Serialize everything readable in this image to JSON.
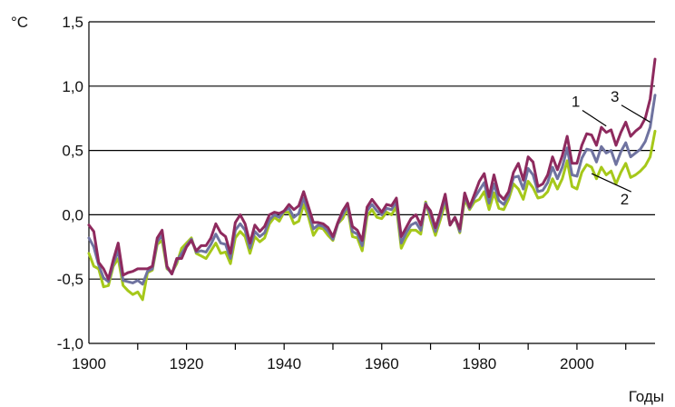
{
  "chart_data": {
    "type": "line",
    "ylabel": "°C",
    "xlabel": "Годы",
    "xlim": [
      1900,
      2016
    ],
    "ylim": [
      -1.0,
      1.5
    ],
    "x_ticks": [
      "1900",
      "1920",
      "1940",
      "1960",
      "1980",
      "2000"
    ],
    "y_ticks": [
      "1,5",
      "1,0",
      "0,5",
      "0,0",
      "-0,5",
      "-1,0"
    ],
    "grid": "horizontal",
    "x": [
      1900,
      1901,
      1902,
      1903,
      1904,
      1905,
      1906,
      1907,
      1908,
      1909,
      1910,
      1911,
      1912,
      1913,
      1914,
      1915,
      1916,
      1917,
      1918,
      1919,
      1920,
      1921,
      1922,
      1923,
      1924,
      1925,
      1926,
      1927,
      1928,
      1929,
      1930,
      1931,
      1932,
      1933,
      1934,
      1935,
      1936,
      1937,
      1938,
      1939,
      1940,
      1941,
      1942,
      1943,
      1944,
      1945,
      1946,
      1947,
      1948,
      1949,
      1950,
      1951,
      1952,
      1953,
      1954,
      1955,
      1956,
      1957,
      1958,
      1959,
      1960,
      1961,
      1962,
      1963,
      1964,
      1965,
      1966,
      1967,
      1968,
      1969,
      1970,
      1971,
      1972,
      1973,
      1974,
      1975,
      1976,
      1977,
      1978,
      1979,
      1980,
      1981,
      1982,
      1983,
      1984,
      1985,
      1986,
      1987,
      1988,
      1989,
      1990,
      1991,
      1992,
      1993,
      1994,
      1995,
      1996,
      1997,
      1998,
      1999,
      2000,
      2001,
      2002,
      2003,
      2004,
      2005,
      2006,
      2007,
      2008,
      2009,
      2010,
      2011,
      2012,
      2013,
      2014,
      2015,
      2016
    ],
    "series": [
      {
        "name": "1",
        "color": "#8e2a5e",
        "values": [
          -0.08,
          -0.13,
          -0.37,
          -0.42,
          -0.5,
          -0.35,
          -0.22,
          -0.47,
          -0.45,
          -0.44,
          -0.42,
          -0.42,
          -0.42,
          -0.4,
          -0.18,
          -0.12,
          -0.4,
          -0.46,
          -0.34,
          -0.34,
          -0.25,
          -0.2,
          -0.28,
          -0.24,
          -0.24,
          -0.18,
          -0.07,
          -0.14,
          -0.17,
          -0.3,
          -0.06,
          0.0,
          -0.07,
          -0.22,
          -0.08,
          -0.13,
          -0.09,
          0.0,
          0.02,
          0.01,
          0.03,
          0.08,
          0.04,
          0.07,
          0.18,
          0.06,
          -0.06,
          -0.06,
          -0.07,
          -0.1,
          -0.17,
          -0.06,
          0.03,
          0.09,
          -0.09,
          -0.12,
          -0.2,
          0.06,
          0.12,
          0.07,
          0.02,
          0.08,
          0.07,
          0.13,
          -0.17,
          -0.1,
          -0.03,
          0.0,
          -0.08,
          0.08,
          0.03,
          -0.1,
          0.02,
          0.16,
          -0.08,
          -0.02,
          -0.11,
          0.17,
          0.06,
          0.16,
          0.26,
          0.32,
          0.14,
          0.31,
          0.16,
          0.12,
          0.18,
          0.33,
          0.4,
          0.27,
          0.45,
          0.41,
          0.22,
          0.24,
          0.31,
          0.45,
          0.35,
          0.46,
          0.61,
          0.4,
          0.4,
          0.54,
          0.63,
          0.62,
          0.54,
          0.68,
          0.64,
          0.66,
          0.54,
          0.64,
          0.72,
          0.61,
          0.65,
          0.68,
          0.75,
          0.9,
          1.21
        ]
      },
      {
        "name": "2",
        "color": "#a6c81a",
        "values": [
          -0.3,
          -0.4,
          -0.42,
          -0.56,
          -0.55,
          -0.4,
          -0.34,
          -0.55,
          -0.59,
          -0.62,
          -0.6,
          -0.66,
          -0.45,
          -0.43,
          -0.23,
          -0.2,
          -0.42,
          -0.45,
          -0.38,
          -0.26,
          -0.22,
          -0.18,
          -0.3,
          -0.32,
          -0.34,
          -0.28,
          -0.22,
          -0.3,
          -0.29,
          -0.38,
          -0.18,
          -0.13,
          -0.17,
          -0.3,
          -0.17,
          -0.21,
          -0.18,
          -0.07,
          -0.02,
          -0.05,
          0.02,
          0.02,
          -0.07,
          -0.05,
          0.08,
          -0.02,
          -0.16,
          -0.1,
          -0.11,
          -0.16,
          -0.2,
          -0.07,
          -0.03,
          0.05,
          -0.17,
          -0.18,
          -0.28,
          -0.01,
          0.04,
          -0.02,
          -0.03,
          0.02,
          0.0,
          0.06,
          -0.26,
          -0.18,
          -0.12,
          -0.12,
          -0.15,
          0.1,
          -0.04,
          -0.16,
          -0.04,
          0.09,
          -0.08,
          -0.02,
          -0.14,
          0.12,
          0.04,
          0.1,
          0.12,
          0.18,
          0.04,
          0.17,
          0.05,
          0.04,
          0.12,
          0.24,
          0.2,
          0.12,
          0.26,
          0.21,
          0.13,
          0.14,
          0.18,
          0.28,
          0.2,
          0.28,
          0.42,
          0.22,
          0.2,
          0.33,
          0.39,
          0.37,
          0.28,
          0.37,
          0.31,
          0.34,
          0.24,
          0.33,
          0.4,
          0.29,
          0.31,
          0.34,
          0.38,
          0.45,
          0.65
        ]
      },
      {
        "name": "3",
        "color": "#6f73a0",
        "values": [
          -0.18,
          -0.25,
          -0.39,
          -0.49,
          -0.52,
          -0.38,
          -0.28,
          -0.51,
          -0.52,
          -0.53,
          -0.51,
          -0.54,
          -0.44,
          -0.42,
          -0.21,
          -0.16,
          -0.41,
          -0.46,
          -0.36,
          -0.3,
          -0.24,
          -0.19,
          -0.29,
          -0.28,
          -0.29,
          -0.23,
          -0.15,
          -0.22,
          -0.23,
          -0.34,
          -0.12,
          -0.07,
          -0.12,
          -0.26,
          -0.13,
          -0.17,
          -0.14,
          -0.04,
          0.0,
          -0.02,
          0.03,
          0.05,
          -0.02,
          0.01,
          0.13,
          0.02,
          -0.11,
          -0.08,
          -0.09,
          -0.13,
          -0.19,
          -0.07,
          0.0,
          0.07,
          -0.13,
          -0.15,
          -0.24,
          0.03,
          0.08,
          0.03,
          0.0,
          0.05,
          0.04,
          0.1,
          -0.22,
          -0.14,
          -0.08,
          -0.06,
          -0.12,
          0.09,
          0.0,
          -0.13,
          -0.01,
          0.13,
          -0.08,
          -0.02,
          -0.13,
          0.15,
          0.05,
          0.13,
          0.19,
          0.25,
          0.09,
          0.24,
          0.11,
          0.08,
          0.15,
          0.29,
          0.3,
          0.2,
          0.36,
          0.31,
          0.18,
          0.19,
          0.25,
          0.37,
          0.28,
          0.37,
          0.52,
          0.31,
          0.3,
          0.44,
          0.51,
          0.5,
          0.41,
          0.53,
          0.48,
          0.5,
          0.39,
          0.49,
          0.56,
          0.45,
          0.48,
          0.51,
          0.57,
          0.68,
          0.93
        ]
      }
    ],
    "annotations": [
      {
        "text": "1",
        "x": 2000,
        "y": 0.84,
        "points_to": [
          2006,
          0.69
        ]
      },
      {
        "text": "2",
        "x": 2010,
        "y": 0.08,
        "points_to": [
          2003,
          0.32
        ]
      },
      {
        "text": "3",
        "x": 2008,
        "y": 0.88,
        "points_to": [
          2015,
          0.72
        ]
      }
    ]
  }
}
